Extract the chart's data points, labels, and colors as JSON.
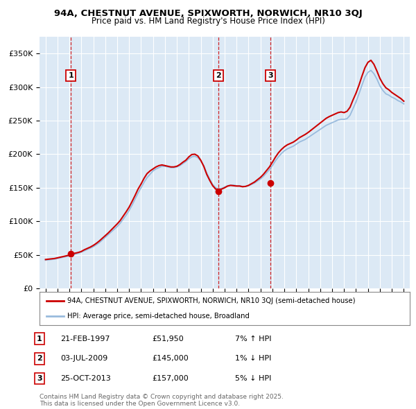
{
  "title_line1": "94A, CHESTNUT AVENUE, SPIXWORTH, NORWICH, NR10 3QJ",
  "title_line2": "Price paid vs. HM Land Registry's House Price Index (HPI)",
  "background_color": "#ffffff",
  "plot_bg_color": "#dce9f5",
  "grid_color": "#ffffff",
  "red_line_color": "#cc0000",
  "blue_line_color": "#99bbdd",
  "sale_marker_color": "#cc0000",
  "dashed_line_color": "#cc0000",
  "label_box_edge": "#cc0000",
  "ylim": [
    0,
    375000
  ],
  "yticks": [
    0,
    50000,
    100000,
    150000,
    200000,
    250000,
    300000,
    350000
  ],
  "ytick_labels": [
    "£0",
    "£50K",
    "£100K",
    "£150K",
    "£200K",
    "£250K",
    "£300K",
    "£350K"
  ],
  "xlim_start": 1994.5,
  "xlim_end": 2025.5,
  "xtick_years": [
    1995,
    1996,
    1997,
    1998,
    1999,
    2000,
    2001,
    2002,
    2003,
    2004,
    2005,
    2006,
    2007,
    2008,
    2009,
    2010,
    2011,
    2012,
    2013,
    2014,
    2015,
    2016,
    2017,
    2018,
    2019,
    2020,
    2021,
    2022,
    2023,
    2024,
    2025
  ],
  "sale_events": [
    {
      "year": 1997.13,
      "price": 51950,
      "label": "1"
    },
    {
      "year": 2009.5,
      "price": 145000,
      "label": "2"
    },
    {
      "year": 2013.81,
      "price": 157000,
      "label": "3"
    }
  ],
  "legend_line1": "94A, CHESTNUT AVENUE, SPIXWORTH, NORWICH, NR10 3QJ (semi-detached house)",
  "legend_line2": "HPI: Average price, semi-detached house, Broadland",
  "table_data": [
    {
      "num": "1",
      "date": "21-FEB-1997",
      "price": "£51,950",
      "hpi": "7% ↑ HPI"
    },
    {
      "num": "2",
      "date": "03-JUL-2009",
      "price": "£145,000",
      "hpi": "1% ↓ HPI"
    },
    {
      "num": "3",
      "date": "25-OCT-2013",
      "price": "£157,000",
      "hpi": "5% ↓ HPI"
    }
  ],
  "footnote": "Contains HM Land Registry data © Crown copyright and database right 2025.\nThis data is licensed under the Open Government Licence v3.0.",
  "hpi_data_x": [
    1995.0,
    1995.25,
    1995.5,
    1995.75,
    1996.0,
    1996.25,
    1996.5,
    1996.75,
    1997.0,
    1997.25,
    1997.5,
    1997.75,
    1998.0,
    1998.25,
    1998.5,
    1998.75,
    1999.0,
    1999.25,
    1999.5,
    1999.75,
    2000.0,
    2000.25,
    2000.5,
    2000.75,
    2001.0,
    2001.25,
    2001.5,
    2001.75,
    2002.0,
    2002.25,
    2002.5,
    2002.75,
    2003.0,
    2003.25,
    2003.5,
    2003.75,
    2004.0,
    2004.25,
    2004.5,
    2004.75,
    2005.0,
    2005.25,
    2005.5,
    2005.75,
    2006.0,
    2006.25,
    2006.5,
    2006.75,
    2007.0,
    2007.25,
    2007.5,
    2007.75,
    2008.0,
    2008.25,
    2008.5,
    2008.75,
    2009.0,
    2009.25,
    2009.5,
    2009.75,
    2010.0,
    2010.25,
    2010.5,
    2010.75,
    2011.0,
    2011.25,
    2011.5,
    2011.75,
    2012.0,
    2012.25,
    2012.5,
    2012.75,
    2013.0,
    2013.25,
    2013.5,
    2013.75,
    2014.0,
    2014.25,
    2014.5,
    2014.75,
    2015.0,
    2015.25,
    2015.5,
    2015.75,
    2016.0,
    2016.25,
    2016.5,
    2016.75,
    2017.0,
    2017.25,
    2017.5,
    2017.75,
    2018.0,
    2018.25,
    2018.5,
    2018.75,
    2019.0,
    2019.25,
    2019.5,
    2019.75,
    2020.0,
    2020.25,
    2020.5,
    2020.75,
    2021.0,
    2021.25,
    2021.5,
    2021.75,
    2022.0,
    2022.25,
    2022.5,
    2022.75,
    2023.0,
    2023.25,
    2023.5,
    2023.75,
    2024.0,
    2024.25,
    2024.5,
    2024.75,
    2025.0
  ],
  "hpi_data_y": [
    42000,
    42500,
    43000,
    43500,
    44500,
    45500,
    46500,
    47500,
    48500,
    50000,
    51000,
    52500,
    54000,
    56000,
    58000,
    60000,
    62000,
    65000,
    68000,
    72000,
    76000,
    80000,
    84000,
    88000,
    92000,
    97000,
    103000,
    109000,
    116000,
    124000,
    133000,
    142000,
    150000,
    158000,
    165000,
    170000,
    175000,
    178000,
    180000,
    182000,
    182000,
    181000,
    180000,
    180000,
    181000,
    183000,
    186000,
    189000,
    193000,
    196000,
    197000,
    195000,
    190000,
    183000,
    172000,
    163000,
    155000,
    150000,
    148000,
    149000,
    151000,
    153000,
    154000,
    154000,
    153000,
    153000,
    152000,
    152000,
    153000,
    155000,
    157000,
    160000,
    163000,
    167000,
    172000,
    177000,
    183000,
    190000,
    196000,
    201000,
    205000,
    208000,
    210000,
    212000,
    215000,
    218000,
    220000,
    222000,
    225000,
    228000,
    231000,
    234000,
    237000,
    240000,
    243000,
    245000,
    247000,
    249000,
    251000,
    252000,
    252000,
    253000,
    258000,
    268000,
    278000,
    290000,
    303000,
    315000,
    322000,
    325000,
    320000,
    312000,
    302000,
    295000,
    290000,
    288000,
    285000,
    283000,
    280000,
    278000,
    275000
  ],
  "price_data_x": [
    1995.0,
    1995.25,
    1995.5,
    1995.75,
    1996.0,
    1996.25,
    1996.5,
    1996.75,
    1997.0,
    1997.25,
    1997.5,
    1997.75,
    1998.0,
    1998.25,
    1998.5,
    1998.75,
    1999.0,
    1999.25,
    1999.5,
    1999.75,
    2000.0,
    2000.25,
    2000.5,
    2000.75,
    2001.0,
    2001.25,
    2001.5,
    2001.75,
    2002.0,
    2002.25,
    2002.5,
    2002.75,
    2003.0,
    2003.25,
    2003.5,
    2003.75,
    2004.0,
    2004.25,
    2004.5,
    2004.75,
    2005.0,
    2005.25,
    2005.5,
    2005.75,
    2006.0,
    2006.25,
    2006.5,
    2006.75,
    2007.0,
    2007.25,
    2007.5,
    2007.75,
    2008.0,
    2008.25,
    2008.5,
    2008.75,
    2009.0,
    2009.25,
    2009.5,
    2009.75,
    2010.0,
    2010.25,
    2010.5,
    2010.75,
    2011.0,
    2011.25,
    2011.5,
    2011.75,
    2012.0,
    2012.25,
    2012.5,
    2012.75,
    2013.0,
    2013.25,
    2013.5,
    2013.75,
    2014.0,
    2014.25,
    2014.5,
    2014.75,
    2015.0,
    2015.25,
    2015.5,
    2015.75,
    2016.0,
    2016.25,
    2016.5,
    2016.75,
    2017.0,
    2017.25,
    2017.5,
    2017.75,
    2018.0,
    2018.25,
    2018.5,
    2018.75,
    2019.0,
    2019.25,
    2019.5,
    2019.75,
    2020.0,
    2020.25,
    2020.5,
    2020.75,
    2021.0,
    2021.25,
    2021.5,
    2021.75,
    2022.0,
    2022.25,
    2022.5,
    2022.75,
    2023.0,
    2023.25,
    2023.5,
    2023.75,
    2024.0,
    2024.25,
    2024.5,
    2024.75,
    2025.0
  ],
  "price_data_y": [
    43000,
    43500,
    44000,
    44500,
    45500,
    46500,
    47500,
    48500,
    49500,
    51500,
    52500,
    53500,
    55000,
    57500,
    59500,
    61500,
    64000,
    67000,
    70500,
    74500,
    78500,
    82500,
    87000,
    91500,
    96000,
    101000,
    107500,
    114000,
    121000,
    129500,
    138500,
    148000,
    155500,
    164000,
    171000,
    175000,
    178000,
    181000,
    183000,
    184000,
    183000,
    182000,
    181000,
    181000,
    182000,
    184500,
    188000,
    191000,
    196000,
    199500,
    200000,
    197500,
    191000,
    182000,
    170000,
    161000,
    153000,
    148000,
    146500,
    148000,
    150000,
    152500,
    153500,
    153000,
    152500,
    152500,
    151500,
    152000,
    153500,
    156000,
    158500,
    162000,
    165500,
    170000,
    175500,
    181000,
    188000,
    195500,
    202000,
    207000,
    211000,
    214000,
    216000,
    218000,
    221000,
    224500,
    227000,
    229500,
    232500,
    236000,
    239500,
    243000,
    246500,
    250000,
    253500,
    256000,
    258000,
    260000,
    262000,
    263000,
    262000,
    264000,
    270000,
    281000,
    291000,
    303000,
    316500,
    329000,
    337000,
    340000,
    334000,
    324000,
    313000,
    305000,
    299000,
    296000,
    292000,
    289000,
    286000,
    283000,
    279000
  ]
}
